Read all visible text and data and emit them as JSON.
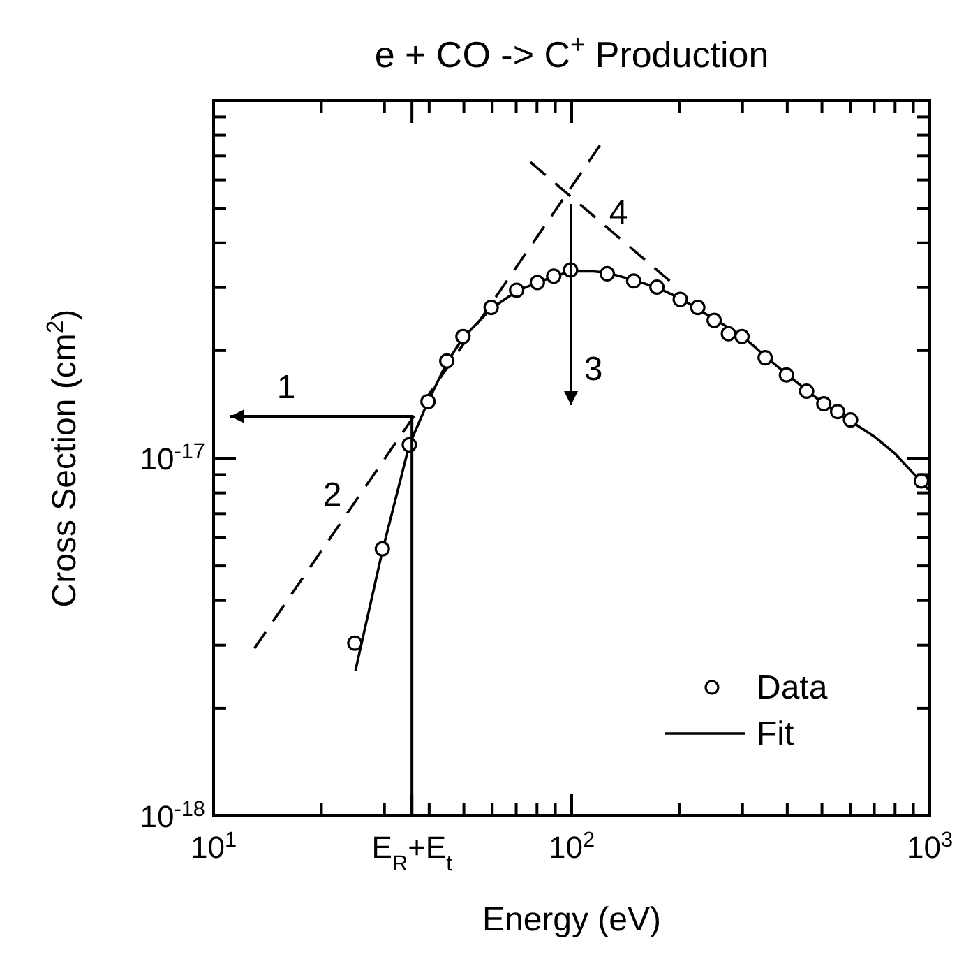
{
  "chart_data": {
    "type": "scatter",
    "title": "e + CO -> C$^{+}$ Production",
    "xlabel": "Energy (eV)",
    "ylabel": "Cross Section (cm$^{2}$)",
    "log": "xy",
    "xlim": [
      10,
      1000
    ],
    "ylim": [
      1e-18,
      1e-16
    ],
    "xticks": [
      {
        "value": 10,
        "label": "10$^{1}$"
      },
      {
        "value": 20,
        "label": null
      },
      {
        "value": 30,
        "label": null
      },
      {
        "value": 35.8,
        "label": "E$_{R}$+E$_{t}$"
      },
      {
        "value": 40,
        "label": null
      },
      {
        "value": 50,
        "label": null
      },
      {
        "value": 60,
        "label": null
      },
      {
        "value": 70,
        "label": null
      },
      {
        "value": 80,
        "label": null
      },
      {
        "value": 90,
        "label": null
      },
      {
        "value": 100,
        "label": "10$^{2}$"
      },
      {
        "value": 200,
        "label": null
      },
      {
        "value": 300,
        "label": null
      },
      {
        "value": 400,
        "label": null
      },
      {
        "value": 500,
        "label": null
      },
      {
        "value": 600,
        "label": null
      },
      {
        "value": 700,
        "label": null
      },
      {
        "value": 800,
        "label": null
      },
      {
        "value": 900,
        "label": null
      },
      {
        "value": 1000,
        "label": "10$^{3}$"
      }
    ],
    "yticks": [
      {
        "value": 1e-18,
        "label": "10$^{-18}$"
      },
      {
        "value": 2e-18,
        "label": null
      },
      {
        "value": 3e-18,
        "label": null
      },
      {
        "value": 4e-18,
        "label": null
      },
      {
        "value": 5e-18,
        "label": null
      },
      {
        "value": 6e-18,
        "label": null
      },
      {
        "value": 7e-18,
        "label": null
      },
      {
        "value": 8e-18,
        "label": null
      },
      {
        "value": 9e-18,
        "label": null
      },
      {
        "value": 1e-17,
        "label": "10$^{-17}$"
      },
      {
        "value": 2e-17,
        "label": null
      },
      {
        "value": 3e-17,
        "label": null
      },
      {
        "value": 4e-17,
        "label": null
      },
      {
        "value": 5e-17,
        "label": null
      },
      {
        "value": 6e-17,
        "label": null
      },
      {
        "value": 7e-17,
        "label": null
      },
      {
        "value": 8e-17,
        "label": null
      },
      {
        "value": 9e-17,
        "label": null
      },
      {
        "value": 1e-16,
        "label": null
      }
    ],
    "grid": false,
    "legend": "bottom right",
    "series": [
      {
        "name": "Data",
        "marker": "circle",
        "color": "#000000",
        "x": [
          24.8,
          29.6,
          35.2,
          39.7,
          44.8,
          49.7,
          59.6,
          70.2,
          80.2,
          89.1,
          99.3,
          125.7,
          149,
          173,
          201,
          225,
          250,
          274,
          299,
          347,
          398,
          453,
          506,
          553,
          601,
          948
        ],
        "values": [
          3.04e-18,
          5.58e-18,
          1.09e-17,
          1.44e-17,
          1.87e-17,
          2.19e-17,
          2.64e-17,
          2.95e-17,
          3.1e-17,
          3.23e-17,
          3.36e-17,
          3.28e-17,
          3.13e-17,
          3.01e-17,
          2.78e-17,
          2.64e-17,
          2.43e-17,
          2.23e-17,
          2.19e-17,
          1.91e-17,
          1.71e-17,
          1.54e-17,
          1.42e-17,
          1.35e-17,
          1.28e-17,
          8.64e-18
        ]
      },
      {
        "name": "Fit",
        "type": "line",
        "line_style": "solid",
        "color": "#000000",
        "x": [
          24.9,
          29.6,
          35.2,
          39.7,
          44.8,
          49.7,
          59.6,
          70.2,
          80.2,
          89.1,
          99.3,
          115,
          125.7,
          149,
          173,
          201,
          250,
          299,
          347,
          398,
          453,
          506,
          553,
          601,
          700,
          800,
          1000
        ],
        "values": [
          2.55e-18,
          5.5e-18,
          1.09e-17,
          1.44e-17,
          1.85e-17,
          2.17e-17,
          2.62e-17,
          2.93e-17,
          3.1e-17,
          3.22e-17,
          3.33e-17,
          3.33e-17,
          3.3e-17,
          3.15e-17,
          3e-17,
          2.8e-17,
          2.45e-17,
          2.2e-17,
          1.93e-17,
          1.72e-17,
          1.55e-17,
          1.42e-17,
          1.34e-17,
          1.27e-17,
          1.15e-17,
          1.03e-17,
          8.1e-18
        ]
      },
      {
        "type": "line",
        "line_style": "dashed",
        "color": "#000000",
        "x": [
          13.0,
          120
        ],
        "values": [
          2.94e-18,
          7.5e-17
        ]
      },
      {
        "type": "line",
        "line_style": "dashed",
        "color": "#000000",
        "x": [
          76.7,
          188
        ],
        "values": [
          6.73e-17,
          3.13e-17
        ]
      }
    ],
    "annotations": [
      "1",
      "2",
      "3",
      "4"
    ]
  }
}
